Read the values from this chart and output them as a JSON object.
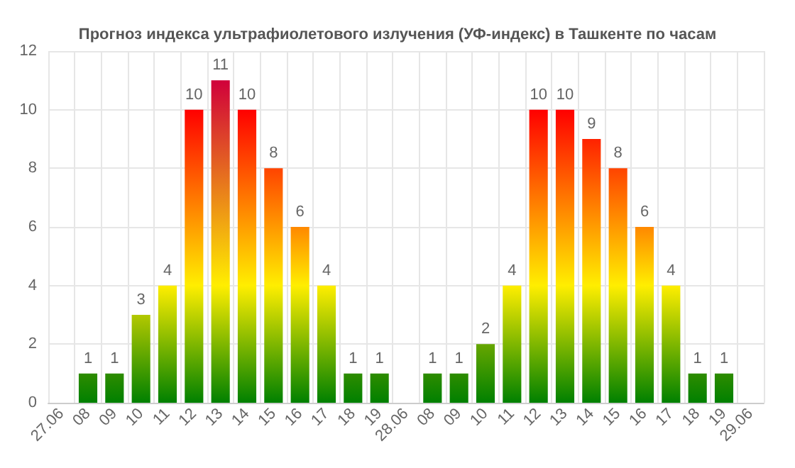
{
  "chart_data": {
    "type": "bar",
    "title": "Прогноз индекса ультрафиолетового излучения (УФ-индекс) в Ташкенте по часам",
    "categories": [
      "27.06",
      "08",
      "09",
      "10",
      "11",
      "12",
      "13",
      "14",
      "15",
      "16",
      "17",
      "18",
      "19",
      "28.06",
      "08",
      "09",
      "10",
      "11",
      "12",
      "13",
      "14",
      "15",
      "16",
      "17",
      "18",
      "19",
      "29.06"
    ],
    "values": [
      null,
      1,
      1,
      3,
      4,
      10,
      11,
      10,
      8,
      6,
      4,
      1,
      1,
      null,
      1,
      1,
      2,
      4,
      10,
      10,
      9,
      8,
      6,
      4,
      1,
      1,
      null
    ],
    "colors": [
      "#008000",
      "#2e8c00",
      "#2e8c00",
      "#b3c800",
      "#ffee00",
      "#ff0000",
      "#d0003a",
      "#ff0000",
      "#ff4400",
      "#ff8800",
      "#ffee00",
      "#2e8c00",
      "#2e8c00",
      "#008000",
      "#2e8c00",
      "#2e8c00",
      "#66a600",
      "#ffee00",
      "#ff0000",
      "#ff0000",
      "#ff2200",
      "#ff4400",
      "#ff8800",
      "#ffee00",
      "#2e8c00",
      "#2e8c00",
      "#008000"
    ],
    "ylim": [
      0,
      12
    ],
    "yticks": [
      0,
      2,
      4,
      6,
      8,
      10,
      12
    ],
    "grid": true,
    "data_labels": true
  }
}
